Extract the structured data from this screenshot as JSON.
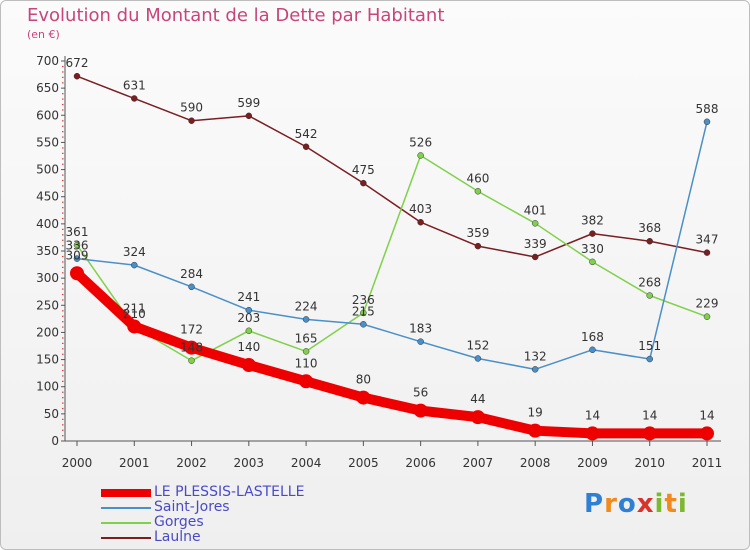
{
  "title": "Evolution du Montant de la Dette par Habitant",
  "subtitle": "(en €)",
  "logo": {
    "letters": [
      "P",
      "r",
      "o",
      "x",
      "i",
      "t",
      "i"
    ],
    "colors": [
      "#2f7fd4",
      "#f08a1c",
      "#2f7fd4",
      "#d8322b",
      "#7bb92f",
      "#f08a1c",
      "#7bb92f"
    ]
  },
  "chart_data": {
    "type": "line",
    "title": "Evolution du Montant de la Dette par Habitant",
    "ylabel": "(en €)",
    "xlabel": "",
    "categories": [
      "2000",
      "2001",
      "2002",
      "2003",
      "2004",
      "2005",
      "2006",
      "2007",
      "2008",
      "2009",
      "2010",
      "2011"
    ],
    "ylim": [
      0,
      700
    ],
    "yticks": [
      0,
      50,
      100,
      150,
      200,
      250,
      300,
      350,
      400,
      450,
      500,
      550,
      600,
      650,
      700
    ],
    "grid": false,
    "legend_position": "bottom-left",
    "series": [
      {
        "name": "Laulne",
        "color": "#7a1e22",
        "values": [
          672,
          631,
          590,
          599,
          542,
          475,
          403,
          359,
          339,
          382,
          368,
          347
        ],
        "labels": [
          "672",
          "631",
          "590",
          "599",
          "542",
          "475",
          "403",
          "359",
          "339",
          "382",
          "368",
          "347"
        ]
      },
      {
        "name": "Gorges",
        "color": "#7fd14a",
        "values": [
          361,
          210,
          148,
          203,
          165,
          236,
          526,
          460,
          401,
          330,
          268,
          229
        ],
        "labels": [
          "361",
          "210",
          "148",
          "203",
          "165",
          "236",
          "526",
          "460",
          "401",
          "330",
          "268",
          "229"
        ]
      },
      {
        "name": "Saint-Jores",
        "color": "#4a8fc8",
        "values": [
          336,
          324,
          284,
          241,
          224,
          215,
          183,
          152,
          132,
          168,
          151,
          588
        ],
        "labels": [
          "336",
          "324",
          "284",
          "241",
          "224",
          "215",
          "183",
          "152",
          "132",
          "168",
          "151",
          "588"
        ]
      },
      {
        "name": "LE PLESSIS-LASTELLE",
        "color": "#ee0000",
        "values": [
          309,
          211,
          172,
          140,
          110,
          80,
          56,
          44,
          19,
          14,
          14,
          14
        ],
        "labels": [
          "309",
          "211",
          "172",
          "140",
          "110",
          "80",
          "56",
          "44",
          "19",
          "14",
          "14",
          "14"
        ]
      }
    ],
    "legend": [
      "LE PLESSIS-LASTELLE",
      "Saint-Jores",
      "Gorges",
      "Laulne"
    ]
  }
}
